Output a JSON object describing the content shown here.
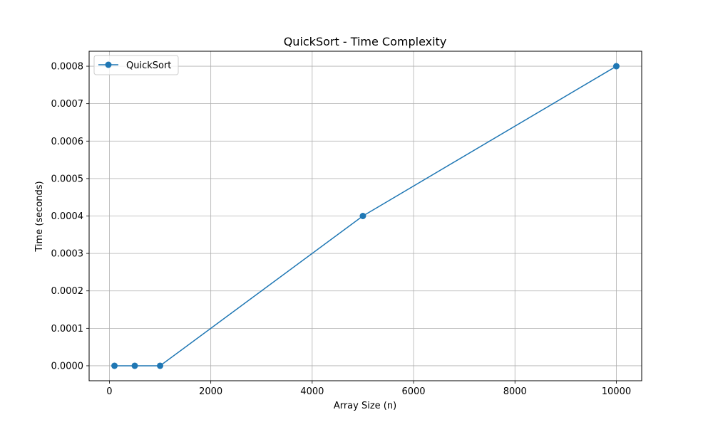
{
  "chart_data": {
    "type": "line",
    "title": "QuickSort - Time Complexity",
    "xlabel": "Array Size (n)",
    "ylabel": "Time (seconds)",
    "xlim": [
      -400,
      10500
    ],
    "ylim": [
      -4e-05,
      0.00084
    ],
    "xticks": [
      0,
      2000,
      4000,
      6000,
      8000,
      10000
    ],
    "xtick_labels": [
      "0",
      "2000",
      "4000",
      "6000",
      "8000",
      "10000"
    ],
    "yticks": [
      0,
      0.0001,
      0.0002,
      0.0003,
      0.0004,
      0.0005,
      0.0006,
      0.0007,
      0.0008
    ],
    "ytick_labels": [
      "0.0000",
      "0.0001",
      "0.0002",
      "0.0003",
      "0.0004",
      "0.0005",
      "0.0006",
      "0.0007",
      "0.0008"
    ],
    "grid": true,
    "legend_position": "top-left",
    "series": [
      {
        "name": "QuickSort",
        "color": "#1f77b4",
        "marker": "circle",
        "x": [
          100,
          500,
          1000,
          5000,
          10000
        ],
        "y": [
          0.0,
          0.0,
          0.0,
          0.0004,
          0.0008
        ]
      }
    ]
  }
}
